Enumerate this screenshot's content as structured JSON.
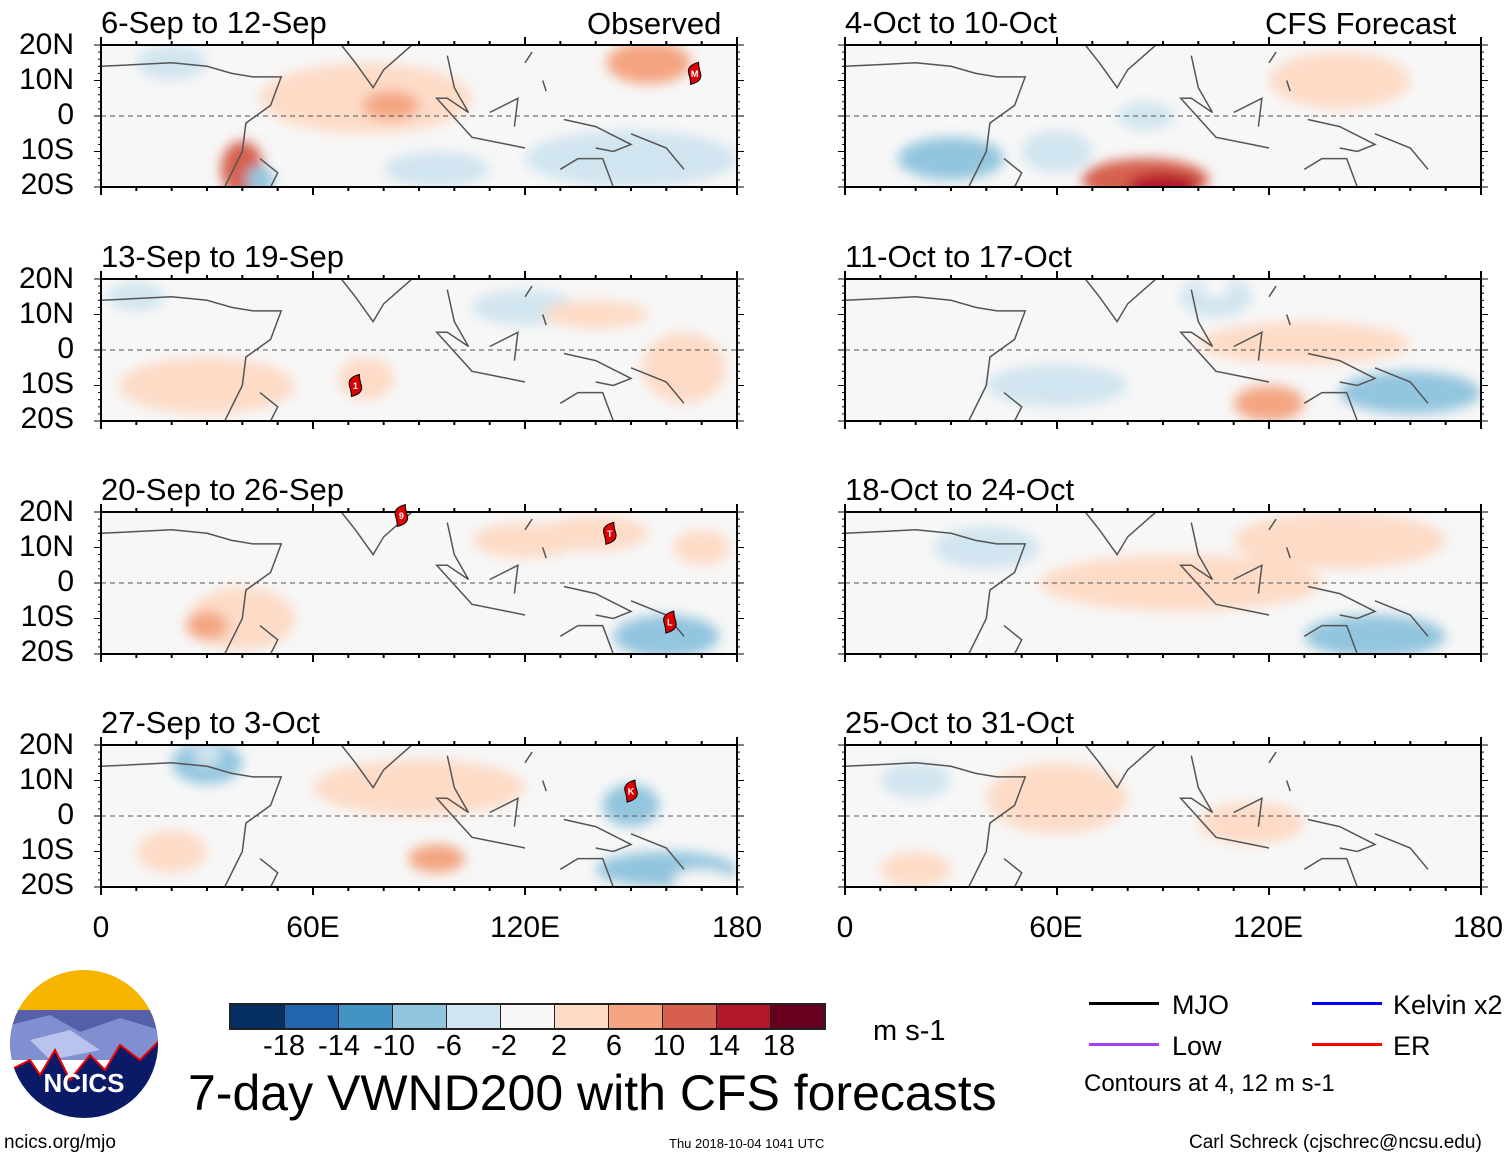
{
  "header": {
    "observed_label": "Observed",
    "forecast_label": "CFS Forecast"
  },
  "panels": [
    {
      "title": "6-Sep to 12-Sep",
      "column": "observed",
      "storms": [
        {
          "label": "M",
          "lon": 168,
          "lat": 12
        }
      ]
    },
    {
      "title": "13-Sep to 19-Sep",
      "column": "observed",
      "storms": [
        {
          "label": "1",
          "lon": 72,
          "lat": -10
        }
      ]
    },
    {
      "title": "20-Sep to 26-Sep",
      "column": "observed",
      "storms": [
        {
          "label": "9",
          "lon": 85,
          "lat": 19
        },
        {
          "label": "T",
          "lon": 144,
          "lat": 14
        },
        {
          "label": "L",
          "lon": 161,
          "lat": -11
        }
      ]
    },
    {
      "title": "27-Sep to 3-Oct",
      "column": "observed",
      "storms": [
        {
          "label": "K",
          "lon": 150,
          "lat": 7
        }
      ]
    },
    {
      "title": "4-Oct to 10-Oct",
      "column": "forecast",
      "storms": []
    },
    {
      "title": "11-Oct to 17-Oct",
      "column": "forecast",
      "storms": []
    },
    {
      "title": "18-Oct to 24-Oct",
      "column": "forecast",
      "storms": []
    },
    {
      "title": "25-Oct to 31-Oct",
      "column": "forecast",
      "storms": []
    }
  ],
  "axes": {
    "lat_ticks": [
      "20N",
      "10N",
      "0",
      "10S",
      "20S"
    ],
    "lon_ticks": [
      "0",
      "60E",
      "120E",
      "180"
    ],
    "lon_range": [
      0,
      180
    ],
    "lat_range": [
      -20,
      20
    ]
  },
  "colorbar": {
    "levels": [
      "-18",
      "-14",
      "-10",
      "-6",
      "-2",
      "2",
      "6",
      "10",
      "14",
      "18"
    ],
    "colors": [
      "#053061",
      "#2166ac",
      "#4393c3",
      "#92c5de",
      "#d1e5f0",
      "#f7f7f7",
      "#fddbc7",
      "#f4a582",
      "#d6604d",
      "#b2182b",
      "#67001f"
    ],
    "units": "m s-1"
  },
  "legend": {
    "items": [
      {
        "label": "MJO",
        "color": "#000000"
      },
      {
        "label": "Kelvin x2",
        "color": "#0000ff"
      },
      {
        "label": "Low",
        "color": "#a040f0"
      },
      {
        "label": "ER",
        "color": "#ff0000"
      }
    ],
    "note": "Contours at 4, 12 m s-1"
  },
  "footer": {
    "title": "7-day VWND200 with CFS forecasts",
    "url": "ncics.org/mjo",
    "timestamp": "Thu 2018-10-04 1041 UTC",
    "author": "Carl Schreck (cjschrec@ncsu.edu)",
    "logo_text": "NCICS"
  }
}
